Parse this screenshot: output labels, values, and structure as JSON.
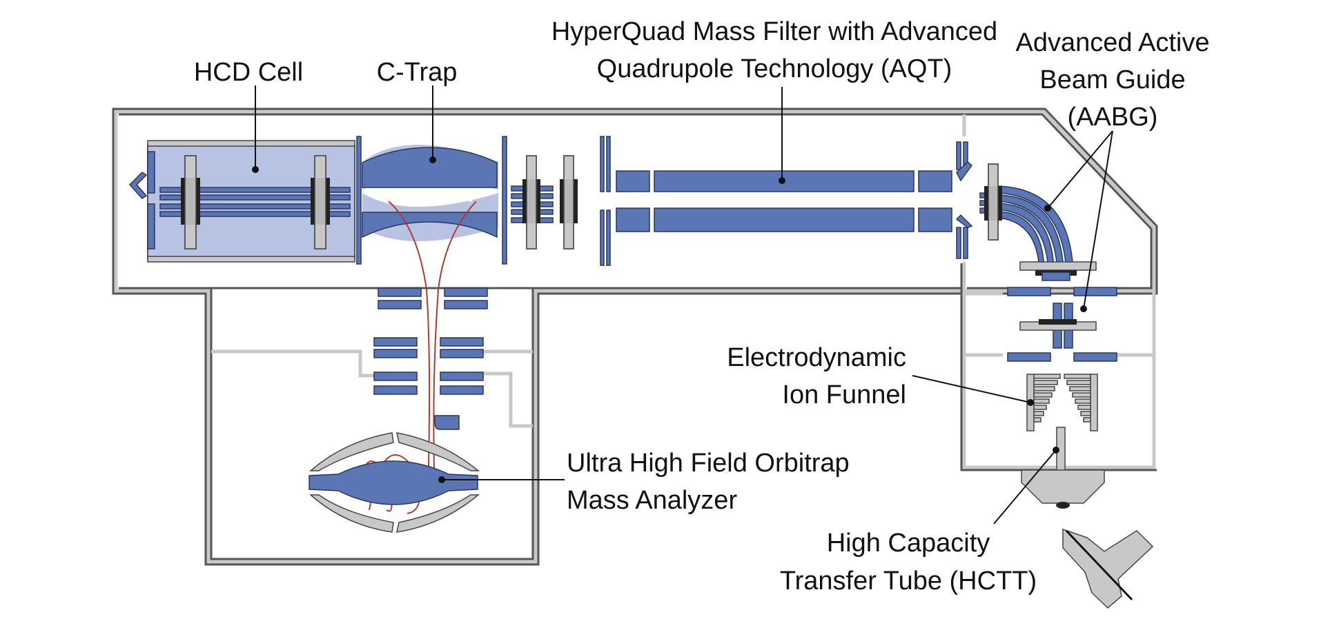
{
  "labels": {
    "hcd_cell": "HCD Cell",
    "c_trap": "C-Trap",
    "hyperquad_line1": "HyperQuad Mass Filter with Advanced",
    "hyperquad_line2": "Quadrupole Technology (AQT)",
    "aabg_line1": "Advanced Active",
    "aabg_line2": "Beam Guide",
    "aabg_line3": "(AABG)",
    "funnel_line1": "Electrodynamic",
    "funnel_line2": "Ion Funnel",
    "orbitrap_line1": "Ultra High Field Orbitrap",
    "orbitrap_line2": "Mass Analyzer",
    "hctt_line1": "High Capacity",
    "hctt_line2": "Transfer Tube (HCTT)"
  },
  "colors": {
    "component_blue": "#5b76b5",
    "cell_fill": "#b8c2e3",
    "housing_gray": "#c8c8c8",
    "housing_edge": "#555555",
    "ion_path": "#b03a2e",
    "leader": "#111111"
  }
}
